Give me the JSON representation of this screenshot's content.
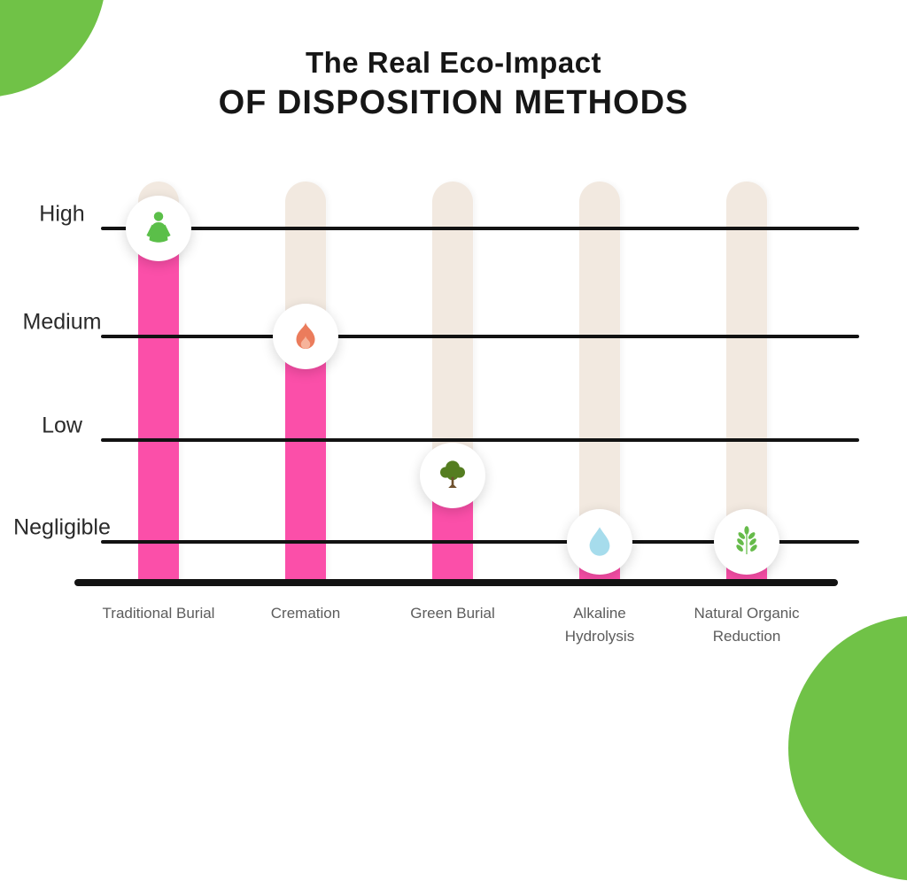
{
  "title": {
    "line1": "The Real Eco-Impact",
    "line2": "OF DISPOSITION METHODS"
  },
  "chart_data": {
    "type": "bar",
    "title": "The Real Eco-Impact of Disposition Methods",
    "categories": [
      "Traditional Burial",
      "Cremation",
      "Green Burial",
      "Alkaline Hydrolysis",
      "Natural Organic Reduction"
    ],
    "values": [
      3,
      2,
      0.65,
      0,
      0
    ],
    "value_levels": [
      "High",
      "Medium",
      "Low-to-Negligible",
      "Negligible",
      "Negligible"
    ],
    "value_scale": {
      "Negligible": 0,
      "Low": 1,
      "Medium": 2,
      "High": 3
    },
    "y_ticks": [
      "High",
      "Medium",
      "Low",
      "Negligible"
    ],
    "ylim": [
      0,
      3
    ],
    "xlabel": "",
    "ylabel": "",
    "grid": "horizontal",
    "legend": "none",
    "bar_icons": [
      "human-body-icon",
      "flame-icon",
      "tree-icon",
      "water-drop-icon",
      "wheat-sprig-icon"
    ],
    "category_label_lines": [
      [
        "Traditional Burial"
      ],
      [
        "Cremation"
      ],
      [
        "Green Burial"
      ],
      [
        "Alkaline",
        "Hydrolysis"
      ],
      [
        "Natural Organic",
        "Reduction"
      ]
    ]
  },
  "colors": {
    "pink": "#fb4fa9",
    "track": "#f2e9e0",
    "corner_green": "#70c247",
    "line": "#121212",
    "icon_body": "#5bbf49",
    "icon_flame": "#eb7c5c",
    "icon_flame_inner": "#f6b39a",
    "icon_tree_crown": "#547d20",
    "icon_tree_trunk": "#6f512e",
    "icon_drop": "#a6dcec",
    "icon_wheat": "#66bb4a"
  }
}
